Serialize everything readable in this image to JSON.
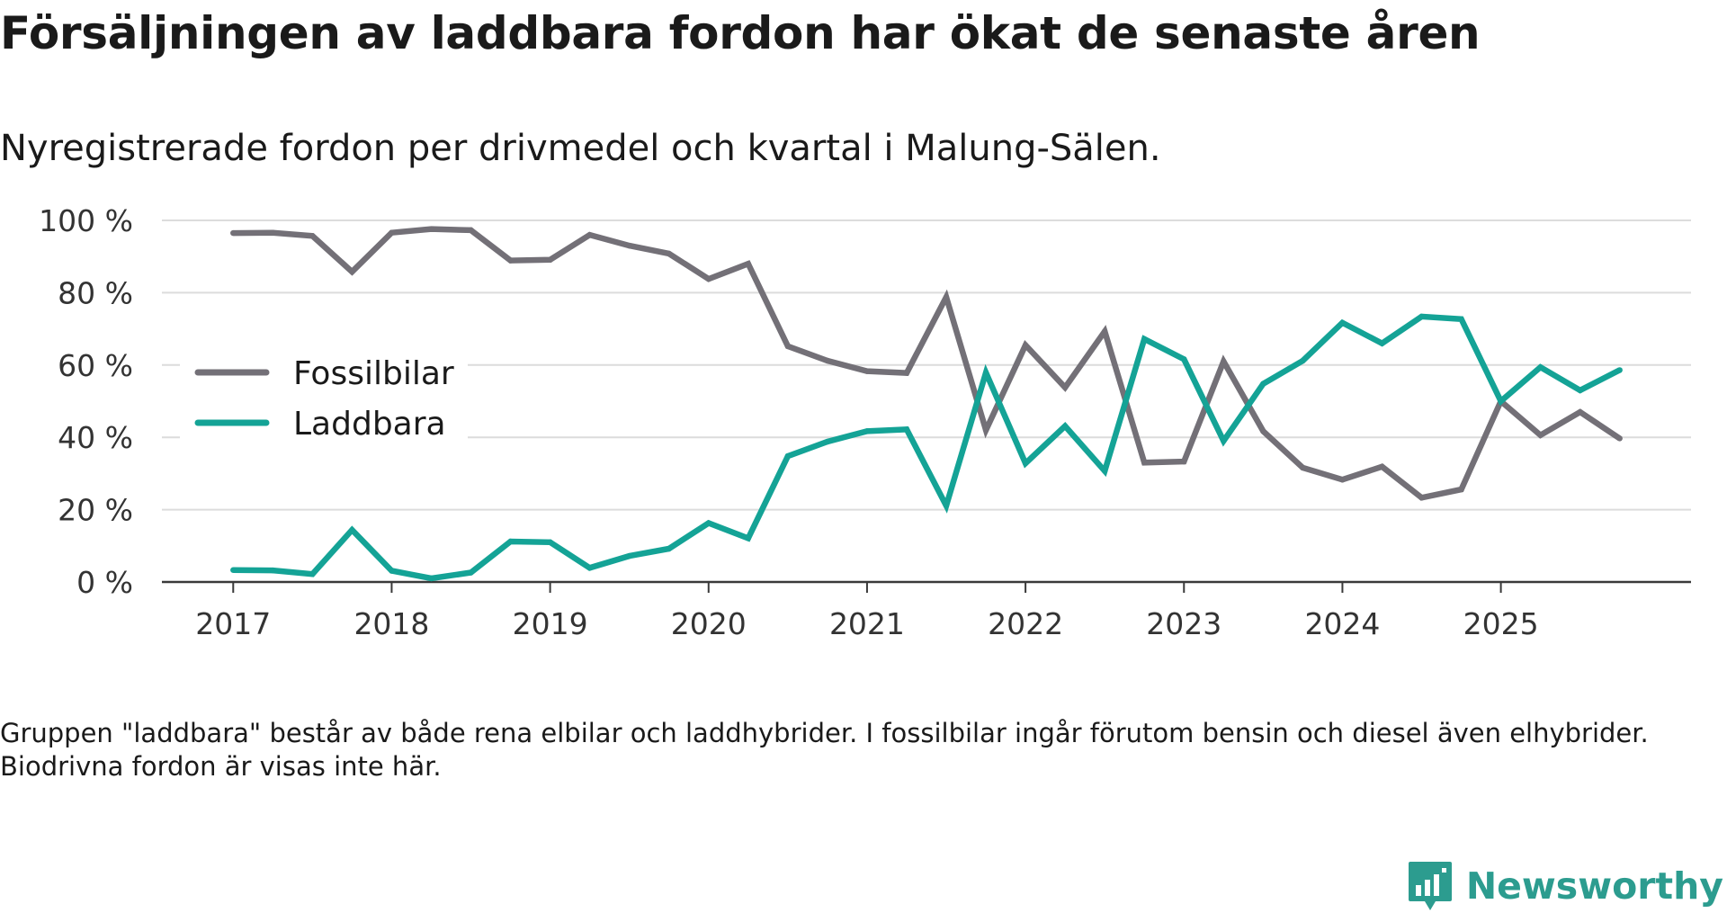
{
  "header": {
    "title": "Försäljningen av laddbara fordon har ökat de senaste åren",
    "subtitle": "Nyregistrerade fordon per drivmedel och kvartal i Malung-Sälen."
  },
  "footer": {
    "note": "Gruppen \"laddbara\" består av både rena elbilar och laddhybrider. I fossilbilar ingår förutom bensin och diesel även elhybrider. Biodrivna fordon är visas inte här.",
    "brand": "Newsworthy"
  },
  "colors": {
    "fossil": "#737077",
    "laddbara": "#14a396",
    "grid": "#dcdcdc",
    "axis": "#3a3a3a",
    "brand": "#2c9c8f"
  },
  "chart_data": {
    "type": "line",
    "title": "",
    "xlabel": "",
    "ylabel": "",
    "x": [
      2017.0,
      2017.25,
      2017.5,
      2017.75,
      2018.0,
      2018.25,
      2018.5,
      2018.75,
      2019.0,
      2019.25,
      2019.5,
      2019.75,
      2020.0,
      2020.25,
      2020.5,
      2020.75,
      2021.0,
      2021.25,
      2021.5,
      2021.75,
      2022.0,
      2022.25,
      2022.5,
      2022.75,
      2023.0,
      2023.25,
      2023.5,
      2023.75,
      2024.0,
      2024.25,
      2024.5,
      2024.75,
      2025.0,
      2025.25,
      2025.5,
      2025.75
    ],
    "xlim": [
      2016.55,
      2026.2
    ],
    "xticks": [
      2017,
      2018,
      2019,
      2020,
      2021,
      2022,
      2023,
      2024,
      2025
    ],
    "xtick_labels": [
      "2017",
      "2018",
      "2019",
      "2020",
      "2021",
      "2022",
      "2023",
      "2024",
      "2025"
    ],
    "ylim": [
      0,
      100
    ],
    "yticks": [
      0,
      20,
      40,
      60,
      80,
      100
    ],
    "ytick_labels": [
      "0 %",
      "20 %",
      "40 %",
      "60 %",
      "80 %",
      "100 %"
    ],
    "grid": true,
    "legend_position": "middle-left",
    "series": [
      {
        "name": "Fossilbilar",
        "color": "#737077",
        "values": [
          96.5,
          96.6,
          95.7,
          85.8,
          96.6,
          97.6,
          97.3,
          88.9,
          89.1,
          96.0,
          93.0,
          90.8,
          83.8,
          88.0,
          65.2,
          61.2,
          58.3,
          57.8,
          78.8,
          42.0,
          65.5,
          53.8,
          69.3,
          33.0,
          33.3,
          61.0,
          41.7,
          31.6,
          28.3,
          31.9,
          23.3,
          25.6,
          50.0,
          40.6,
          47.0,
          39.7
        ]
      },
      {
        "name": "Laddbara",
        "color": "#14a396",
        "values": [
          3.3,
          3.2,
          2.2,
          14.4,
          3.1,
          1.0,
          2.6,
          11.2,
          11.0,
          3.9,
          7.2,
          9.2,
          16.3,
          12.1,
          34.8,
          38.8,
          41.7,
          42.2,
          21.1,
          57.9,
          32.8,
          43.1,
          30.7,
          67.2,
          61.6,
          39.0,
          54.8,
          61.2,
          71.7,
          66.0,
          73.4,
          72.7,
          50.0,
          59.4,
          53.0,
          58.6
        ]
      }
    ]
  }
}
